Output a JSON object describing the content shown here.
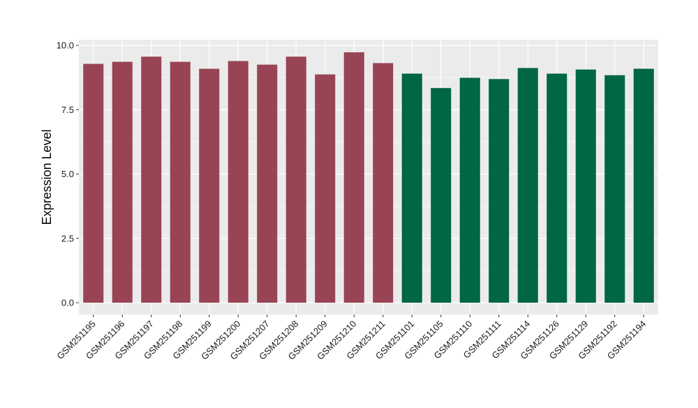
{
  "chart_data": {
    "type": "bar",
    "title": "",
    "xlabel": "",
    "ylabel": "Expression Level",
    "ylim": [
      0,
      10
    ],
    "yticks": [
      "0.0",
      "2.5",
      "5.0",
      "7.5",
      "10.0"
    ],
    "ytick_values": [
      0,
      2.5,
      5,
      7.5,
      10
    ],
    "grid": true,
    "legend": "none",
    "colors": {
      "group_a": "#994455",
      "group_b": "#006644",
      "panel_bg": "#EBEBEB",
      "grid": "#FFFFFF"
    },
    "categories": [
      "GSM251195",
      "GSM251196",
      "GSM251197",
      "GSM251198",
      "GSM251199",
      "GSM251200",
      "GSM251207",
      "GSM251208",
      "GSM251209",
      "GSM251210",
      "GSM251211",
      "GSM251101",
      "GSM251105",
      "GSM251110",
      "GSM251111",
      "GSM251114",
      "GSM251126",
      "GSM251129",
      "GSM251192",
      "GSM251194"
    ],
    "values": [
      9.28,
      9.36,
      9.56,
      9.36,
      9.09,
      9.39,
      9.25,
      9.56,
      8.87,
      9.73,
      9.31,
      8.9,
      8.34,
      8.74,
      8.69,
      9.12,
      8.9,
      9.06,
      8.84,
      9.09
    ],
    "bar_groups": [
      "a",
      "a",
      "a",
      "a",
      "a",
      "a",
      "a",
      "a",
      "a",
      "a",
      "a",
      "b",
      "b",
      "b",
      "b",
      "b",
      "b",
      "b",
      "b",
      "b"
    ]
  }
}
